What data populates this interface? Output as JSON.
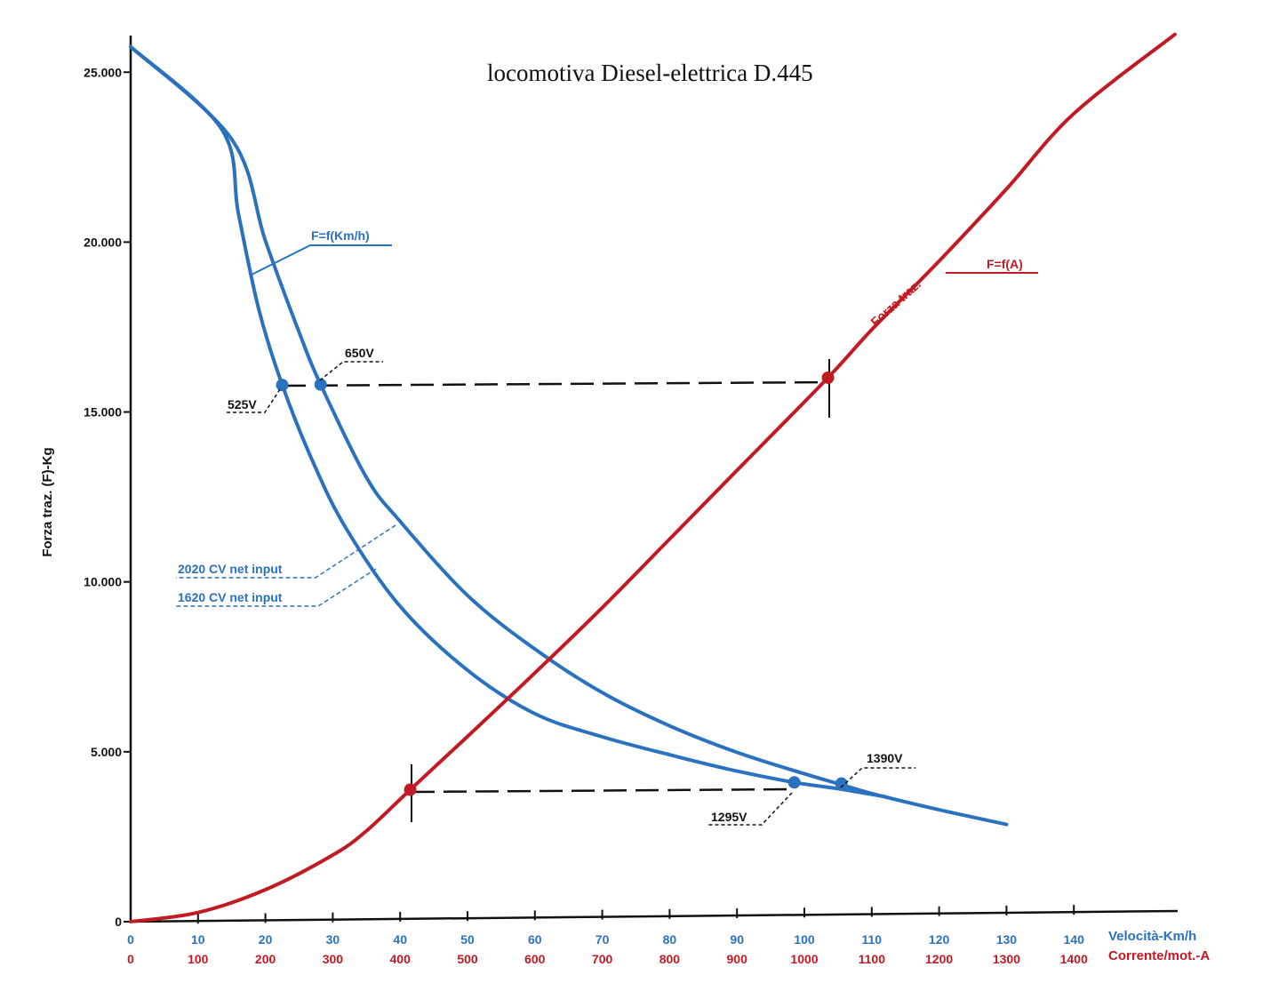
{
  "chart_data": {
    "type": "line",
    "title": "locomotiva  Diesel-elettrica  D.445",
    "ylabel": "Forza traz. (F)-Kg",
    "xlabel_speed": "Velocità-Km/h",
    "xlabel_current": "Corrente/mot.-A",
    "ylim": [
      0,
      26000
    ],
    "xlim_speed": [
      0,
      155
    ],
    "xlim_current": [
      0,
      1550
    ],
    "y_ticks": [
      {
        "value": 0,
        "label": "0"
      },
      {
        "value": 5000,
        "label": "5.000"
      },
      {
        "value": 10000,
        "label": "10.000"
      },
      {
        "value": 15000,
        "label": "15.000"
      },
      {
        "value": 20000,
        "label": "20.000"
      },
      {
        "value": 25000,
        "label": "25.000"
      }
    ],
    "x_speed_ticks": [
      {
        "value": 0,
        "label": "0"
      },
      {
        "value": 10,
        "label": "10"
      },
      {
        "value": 20,
        "label": "20"
      },
      {
        "value": 30,
        "label": "30"
      },
      {
        "value": 40,
        "label": "40"
      },
      {
        "value": 50,
        "label": "50"
      },
      {
        "value": 60,
        "label": "60"
      },
      {
        "value": 70,
        "label": "70"
      },
      {
        "value": 80,
        "label": "80"
      },
      {
        "value": 90,
        "label": "90"
      },
      {
        "value": 100,
        "label": "100"
      },
      {
        "value": 110,
        "label": "110"
      },
      {
        "value": 120,
        "label": "120"
      },
      {
        "value": 130,
        "label": "130"
      },
      {
        "value": 140,
        "label": "140"
      }
    ],
    "x_current_ticks": [
      {
        "value": 0,
        "label": "0"
      },
      {
        "value": 100,
        "label": "100"
      },
      {
        "value": 200,
        "label": "200"
      },
      {
        "value": 300,
        "label": "300"
      },
      {
        "value": 400,
        "label": "400"
      },
      {
        "value": 500,
        "label": "500"
      },
      {
        "value": 600,
        "label": "600"
      },
      {
        "value": 700,
        "label": "700"
      },
      {
        "value": 800,
        "label": "800"
      },
      {
        "value": 900,
        "label": "900"
      },
      {
        "value": 1000,
        "label": "1000"
      },
      {
        "value": 1100,
        "label": "1100"
      },
      {
        "value": 1200,
        "label": "1200"
      },
      {
        "value": 1300,
        "label": "1300"
      },
      {
        "value": 1400,
        "label": "1400"
      }
    ],
    "series": [
      {
        "name": "2020 CV net input",
        "axis": "speed",
        "color": "#2a72c0",
        "points": [
          [
            0,
            25750
          ],
          [
            15,
            23000
          ],
          [
            20,
            20000
          ],
          [
            25,
            17300
          ],
          [
            28.2,
            15750
          ],
          [
            35,
            13000
          ],
          [
            40,
            11700
          ],
          [
            50,
            9500
          ],
          [
            60,
            7900
          ],
          [
            70,
            6600
          ],
          [
            80,
            5600
          ],
          [
            90,
            4800
          ],
          [
            100,
            4150
          ],
          [
            105,
            3850
          ],
          [
            110,
            3550
          ],
          [
            120,
            3050
          ],
          [
            130,
            2600
          ]
        ]
      },
      {
        "name": "1620 CV net input",
        "axis": "speed",
        "color": "#2a72c0",
        "points": [
          [
            0,
            25750
          ],
          [
            13.5,
            23300
          ],
          [
            16,
            20800
          ],
          [
            19,
            18000
          ],
          [
            22.5,
            15750
          ],
          [
            27,
            13500
          ],
          [
            32,
            11500
          ],
          [
            40,
            9200
          ],
          [
            50,
            7300
          ],
          [
            60,
            6000
          ],
          [
            70,
            5300
          ],
          [
            80,
            4750
          ],
          [
            90,
            4250
          ],
          [
            98.5,
            3900
          ],
          [
            105,
            3700
          ],
          [
            112,
            3450
          ]
        ]
      },
      {
        "name": "Forza traz.",
        "axis": "current",
        "color": "#c21a22",
        "points": [
          [
            0,
            0
          ],
          [
            100,
            250
          ],
          [
            200,
            900
          ],
          [
            300,
            1900
          ],
          [
            350,
            2600
          ],
          [
            415,
            3800
          ],
          [
            500,
            5350
          ],
          [
            600,
            7200
          ],
          [
            700,
            9100
          ],
          [
            800,
            11100
          ],
          [
            900,
            13100
          ],
          [
            1035,
            15800
          ],
          [
            1100,
            17200
          ],
          [
            1200,
            19200
          ],
          [
            1300,
            21300
          ],
          [
            1400,
            23500
          ],
          [
            1550,
            25800
          ]
        ]
      }
    ],
    "markers": [
      {
        "axis": "speed",
        "x": 22.5,
        "y": 15750,
        "color": "#2a72c0"
      },
      {
        "axis": "speed",
        "x": 28.2,
        "y": 15750,
        "color": "#2a72c0"
      },
      {
        "axis": "speed",
        "x": 98.5,
        "y": 3900,
        "color": "#2a72c0"
      },
      {
        "axis": "speed",
        "x": 105.5,
        "y": 3850,
        "color": "#2a72c0"
      },
      {
        "axis": "current",
        "x": 1035,
        "y": 15800,
        "color": "#c21a22"
      },
      {
        "axis": "current",
        "x": 415,
        "y": 3800,
        "color": "#c21a22"
      }
    ],
    "annotations": {
      "f_speed": "F=f(Km/h)",
      "f_current": "F=f(A)",
      "forza_traz": "Forza traz.",
      "v525": "525V",
      "v650": "650V",
      "v1295": "1295V",
      "v1390": "1390V",
      "cv2020": "2020 CV net input",
      "cv1620": "1620 CV net input"
    }
  }
}
